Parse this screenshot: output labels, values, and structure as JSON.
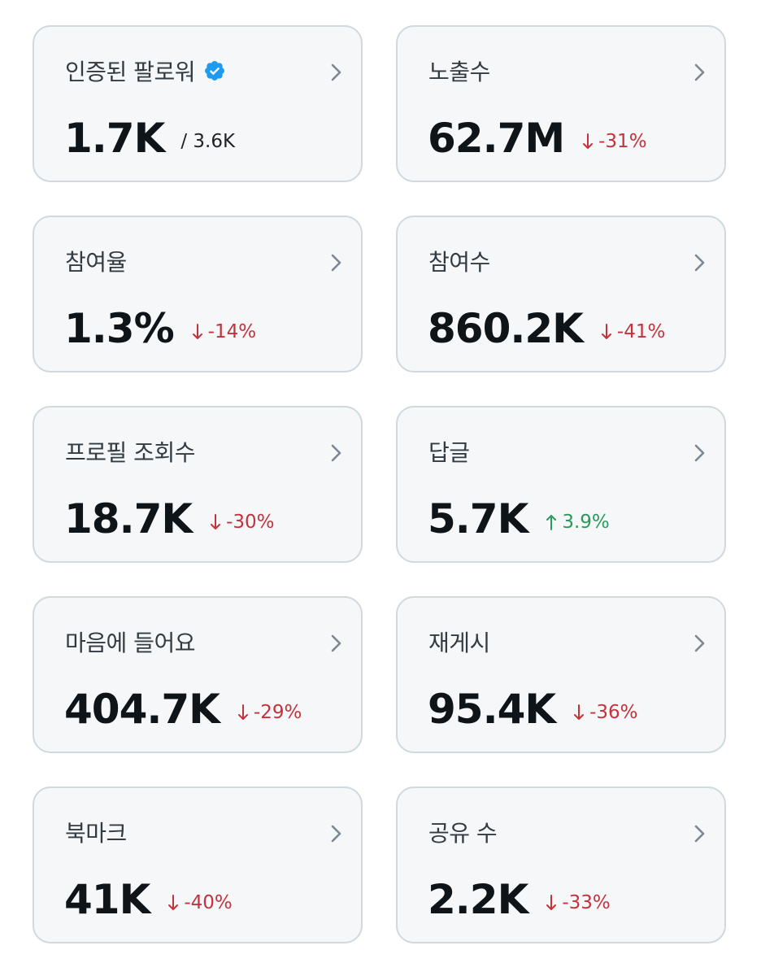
{
  "cards": [
    {
      "label": "인증된 팔로워",
      "value": "1.7K",
      "sub": "/ 3.6K",
      "verified": true,
      "icon": "chevron-right-icon"
    },
    {
      "label": "노출수",
      "value": "62.7M",
      "delta": "-31%",
      "direction": "down",
      "icon": "chevron-right-icon"
    },
    {
      "label": "참여율",
      "value": "1.3%",
      "delta": "-14%",
      "direction": "down",
      "icon": "chevron-right-icon"
    },
    {
      "label": "참여수",
      "value": "860.2K",
      "delta": "-41%",
      "direction": "down",
      "icon": "chevron-right-icon"
    },
    {
      "label": "프로필 조회수",
      "value": "18.7K",
      "delta": "-30%",
      "direction": "down",
      "icon": "chevron-right-icon"
    },
    {
      "label": "답글",
      "value": "5.7K",
      "delta": "3.9%",
      "direction": "up",
      "icon": "chevron-right-icon"
    },
    {
      "label": "마음에 들어요",
      "value": "404.7K",
      "delta": "-29%",
      "direction": "down",
      "icon": "chevron-right-icon"
    },
    {
      "label": "재게시",
      "value": "95.4K",
      "delta": "-36%",
      "direction": "down",
      "icon": "chevron-right-icon"
    },
    {
      "label": "북마크",
      "value": "41K",
      "delta": "-40%",
      "direction": "down",
      "icon": "chevron-right-icon"
    },
    {
      "label": "공유 수",
      "value": "2.2K",
      "delta": "-33%",
      "direction": "down",
      "icon": "chevron-right-icon"
    }
  ],
  "colors": {
    "card_bg": "#f6f7f8",
    "card_border": "#cfd9de",
    "negative": "#c4323c",
    "positive": "#2a9a5c",
    "verified": "#1d9bf0",
    "chevron": "#7b8794"
  }
}
